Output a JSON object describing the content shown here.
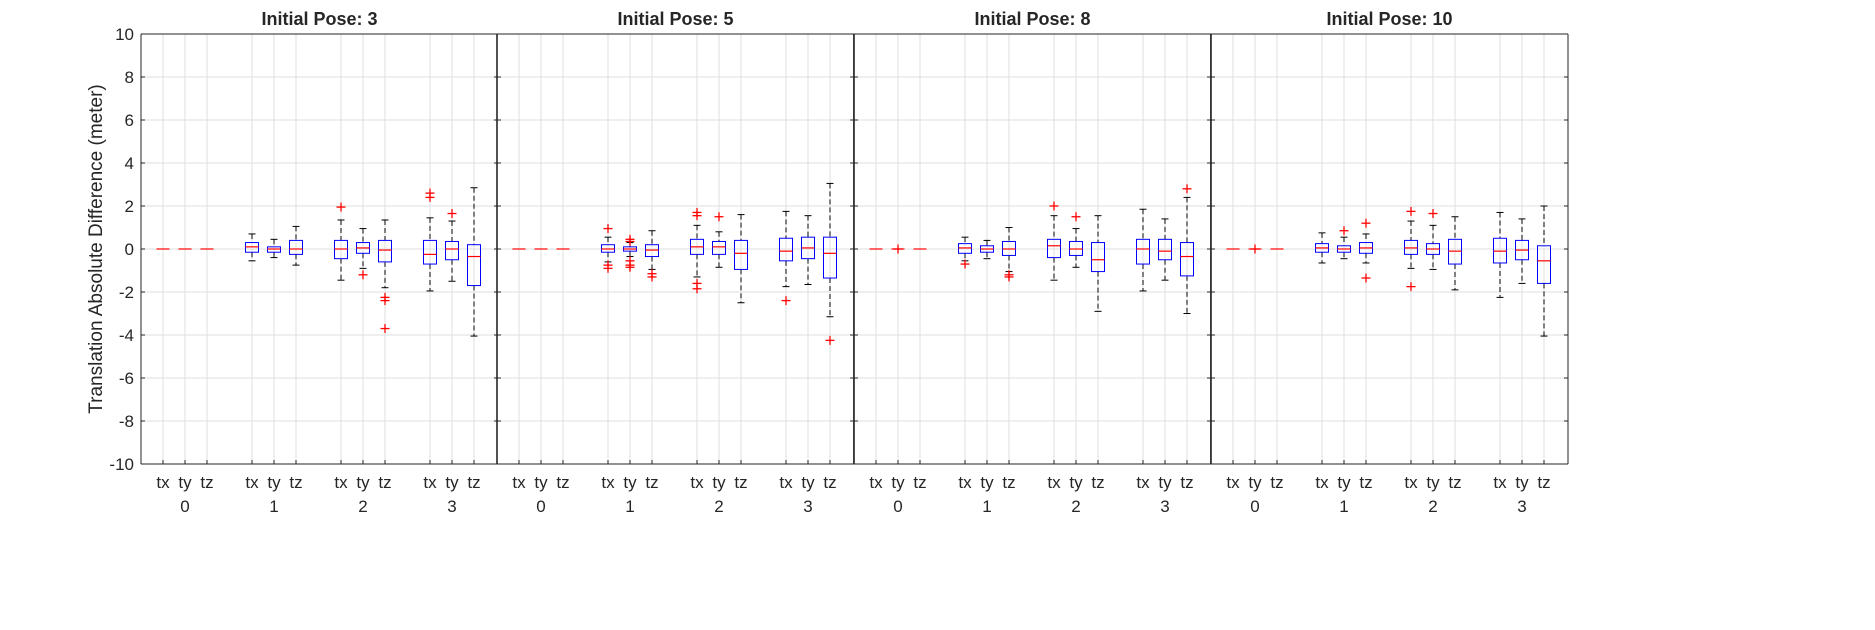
{
  "chart_data": {
    "type": "box",
    "ylabel": "Translation Absolute Difference (meter)",
    "ylim": [
      -10,
      10
    ],
    "yticks": [
      -10,
      -8,
      -6,
      -4,
      -2,
      0,
      2,
      4,
      6,
      8,
      10
    ],
    "grid": true,
    "colors": {
      "box": "#0000ff",
      "median": "#ff0000",
      "outlier": "#ff0000",
      "whisker": "#000000",
      "grid": "#dfdfdf"
    },
    "groups": [
      "0",
      "1",
      "2",
      "3"
    ],
    "components": [
      "tx",
      "ty",
      "tz"
    ],
    "panels": [
      {
        "title": "Initial Pose: 3",
        "boxes": [
          [
            {
              "lo": 0,
              "q1": 0,
              "med": 0,
              "q3": 0,
              "hi": 0,
              "out": []
            },
            {
              "lo": 0,
              "q1": 0,
              "med": 0,
              "q3": 0,
              "hi": 0,
              "out": []
            },
            {
              "lo": 0,
              "q1": 0,
              "med": 0,
              "q3": 0,
              "hi": 0,
              "out": []
            }
          ],
          [
            {
              "lo": -0.55,
              "q1": -0.15,
              "med": 0.1,
              "q3": 0.3,
              "hi": 0.7,
              "out": []
            },
            {
              "lo": -0.4,
              "q1": -0.15,
              "med": 0,
              "q3": 0.1,
              "hi": 0.45,
              "out": []
            },
            {
              "lo": -0.75,
              "q1": -0.25,
              "med": 0,
              "q3": 0.4,
              "hi": 1.05,
              "out": []
            }
          ],
          [
            {
              "lo": -1.45,
              "q1": -0.45,
              "med": 0,
              "q3": 0.4,
              "hi": 1.35,
              "out": [
                1.95
              ]
            },
            {
              "lo": -0.9,
              "q1": -0.2,
              "med": 0.05,
              "q3": 0.3,
              "hi": 0.95,
              "out": [
                -1.2
              ]
            },
            {
              "lo": -1.8,
              "q1": -0.6,
              "med": -0.05,
              "q3": 0.4,
              "hi": 1.35,
              "out": [
                -2.25,
                -2.4,
                -3.7
              ]
            }
          ],
          [
            {
              "lo": -1.95,
              "q1": -0.7,
              "med": -0.25,
              "q3": 0.4,
              "hi": 1.45,
              "out": [
                2.4,
                2.6
              ]
            },
            {
              "lo": -1.5,
              "q1": -0.5,
              "med": 0,
              "q3": 0.35,
              "hi": 1.3,
              "out": [
                1.65
              ]
            },
            {
              "lo": -4.05,
              "q1": -1.7,
              "med": -0.35,
              "q3": 0.2,
              "hi": 2.85,
              "out": []
            }
          ]
        ]
      },
      {
        "title": "Initial Pose: 5",
        "boxes": [
          [
            {
              "lo": 0,
              "q1": 0,
              "med": 0,
              "q3": 0,
              "hi": 0,
              "out": []
            },
            {
              "lo": 0,
              "q1": 0,
              "med": 0,
              "q3": 0,
              "hi": 0,
              "out": []
            },
            {
              "lo": 0,
              "q1": 0,
              "med": 0,
              "q3": 0,
              "hi": 0,
              "out": []
            }
          ],
          [
            {
              "lo": -0.6,
              "q1": -0.15,
              "med": 0,
              "q3": 0.2,
              "hi": 0.55,
              "out": [
                0.95,
                -0.75,
                -0.9
              ]
            },
            {
              "lo": -0.35,
              "q1": -0.1,
              "med": 0,
              "q3": 0.1,
              "hi": 0.3,
              "out": [
                0.45,
                0.35,
                -0.55,
                -0.75,
                -0.85
              ]
            },
            {
              "lo": -0.95,
              "q1": -0.35,
              "med": -0.05,
              "q3": 0.2,
              "hi": 0.85,
              "out": [
                -1.15,
                -1.3
              ]
            }
          ],
          [
            {
              "lo": -1.3,
              "q1": -0.25,
              "med": 0.1,
              "q3": 0.45,
              "hi": 1.1,
              "out": [
                1.7,
                1.55,
                -1.6,
                -1.85
              ]
            },
            {
              "lo": -0.85,
              "q1": -0.25,
              "med": 0.1,
              "q3": 0.35,
              "hi": 0.8,
              "out": [
                1.5
              ]
            },
            {
              "lo": -2.5,
              "q1": -0.95,
              "med": -0.2,
              "q3": 0.4,
              "hi": 1.6,
              "out": []
            }
          ],
          [
            {
              "lo": -1.75,
              "q1": -0.55,
              "med": -0.1,
              "q3": 0.5,
              "hi": 1.75,
              "out": [
                -2.4
              ]
            },
            {
              "lo": -1.65,
              "q1": -0.45,
              "med": 0.05,
              "q3": 0.55,
              "hi": 1.55,
              "out": []
            },
            {
              "lo": -3.15,
              "q1": -1.35,
              "med": -0.2,
              "q3": 0.55,
              "hi": 3.05,
              "out": [
                -4.25
              ]
            }
          ]
        ]
      },
      {
        "title": "Initial Pose: 8",
        "boxes": [
          [
            {
              "lo": 0,
              "q1": 0,
              "med": 0,
              "q3": 0,
              "hi": 0,
              "out": []
            },
            {
              "lo": 0,
              "q1": 0,
              "med": 0,
              "q3": 0,
              "hi": 0,
              "out": [
                0
              ]
            },
            {
              "lo": 0,
              "q1": 0,
              "med": 0,
              "q3": 0,
              "hi": 0,
              "out": []
            }
          ],
          [
            {
              "lo": -0.55,
              "q1": -0.2,
              "med": 0.05,
              "q3": 0.25,
              "hi": 0.55,
              "out": [
                -0.7
              ]
            },
            {
              "lo": -0.45,
              "q1": -0.15,
              "med": 0,
              "q3": 0.15,
              "hi": 0.4,
              "out": []
            },
            {
              "lo": -1.05,
              "q1": -0.3,
              "med": 0,
              "q3": 0.35,
              "hi": 1.0,
              "out": [
                -1.2,
                -1.3
              ]
            }
          ],
          [
            {
              "lo": -1.45,
              "q1": -0.4,
              "med": 0.15,
              "q3": 0.45,
              "hi": 1.55,
              "out": [
                2.0
              ]
            },
            {
              "lo": -0.85,
              "q1": -0.3,
              "med": 0,
              "q3": 0.35,
              "hi": 0.95,
              "out": [
                1.5
              ]
            },
            {
              "lo": -2.9,
              "q1": -1.05,
              "med": -0.5,
              "q3": 0.3,
              "hi": 1.55,
              "out": []
            }
          ],
          [
            {
              "lo": -1.95,
              "q1": -0.7,
              "med": 0,
              "q3": 0.45,
              "hi": 1.85,
              "out": []
            },
            {
              "lo": -1.45,
              "q1": -0.5,
              "med": -0.1,
              "q3": 0.45,
              "hi": 1.4,
              "out": []
            },
            {
              "lo": -3.0,
              "q1": -1.25,
              "med": -0.35,
              "q3": 0.3,
              "hi": 2.4,
              "out": [
                2.8
              ]
            }
          ]
        ]
      },
      {
        "title": "Initial Pose: 10",
        "boxes": [
          [
            {
              "lo": 0,
              "q1": 0,
              "med": 0,
              "q3": 0,
              "hi": 0,
              "out": []
            },
            {
              "lo": 0,
              "q1": 0,
              "med": 0,
              "q3": 0,
              "hi": 0,
              "out": [
                0
              ]
            },
            {
              "lo": 0,
              "q1": 0,
              "med": 0,
              "q3": 0,
              "hi": 0,
              "out": []
            }
          ],
          [
            {
              "lo": -0.65,
              "q1": -0.15,
              "med": 0.05,
              "q3": 0.25,
              "hi": 0.75,
              "out": []
            },
            {
              "lo": -0.45,
              "q1": -0.15,
              "med": 0,
              "q3": 0.15,
              "hi": 0.55,
              "out": [
                0.85
              ]
            },
            {
              "lo": -0.65,
              "q1": -0.2,
              "med": 0.05,
              "q3": 0.3,
              "hi": 0.7,
              "out": [
                1.2,
                -1.35
              ]
            }
          ],
          [
            {
              "lo": -0.9,
              "q1": -0.25,
              "med": 0.05,
              "q3": 0.4,
              "hi": 1.3,
              "out": [
                1.75,
                -1.75
              ]
            },
            {
              "lo": -0.95,
              "q1": -0.25,
              "med": 0,
              "q3": 0.25,
              "hi": 1.1,
              "out": [
                1.65
              ]
            },
            {
              "lo": -1.9,
              "q1": -0.7,
              "med": -0.1,
              "q3": 0.45,
              "hi": 1.5,
              "out": []
            }
          ],
          [
            {
              "lo": -2.25,
              "q1": -0.65,
              "med": -0.1,
              "q3": 0.5,
              "hi": 1.7,
              "out": []
            },
            {
              "lo": -1.6,
              "q1": -0.5,
              "med": -0.05,
              "q3": 0.4,
              "hi": 1.4,
              "out": []
            },
            {
              "lo": -4.05,
              "q1": -1.6,
              "med": -0.55,
              "q3": 0.15,
              "hi": 2.0,
              "out": []
            }
          ]
        ]
      }
    ]
  }
}
